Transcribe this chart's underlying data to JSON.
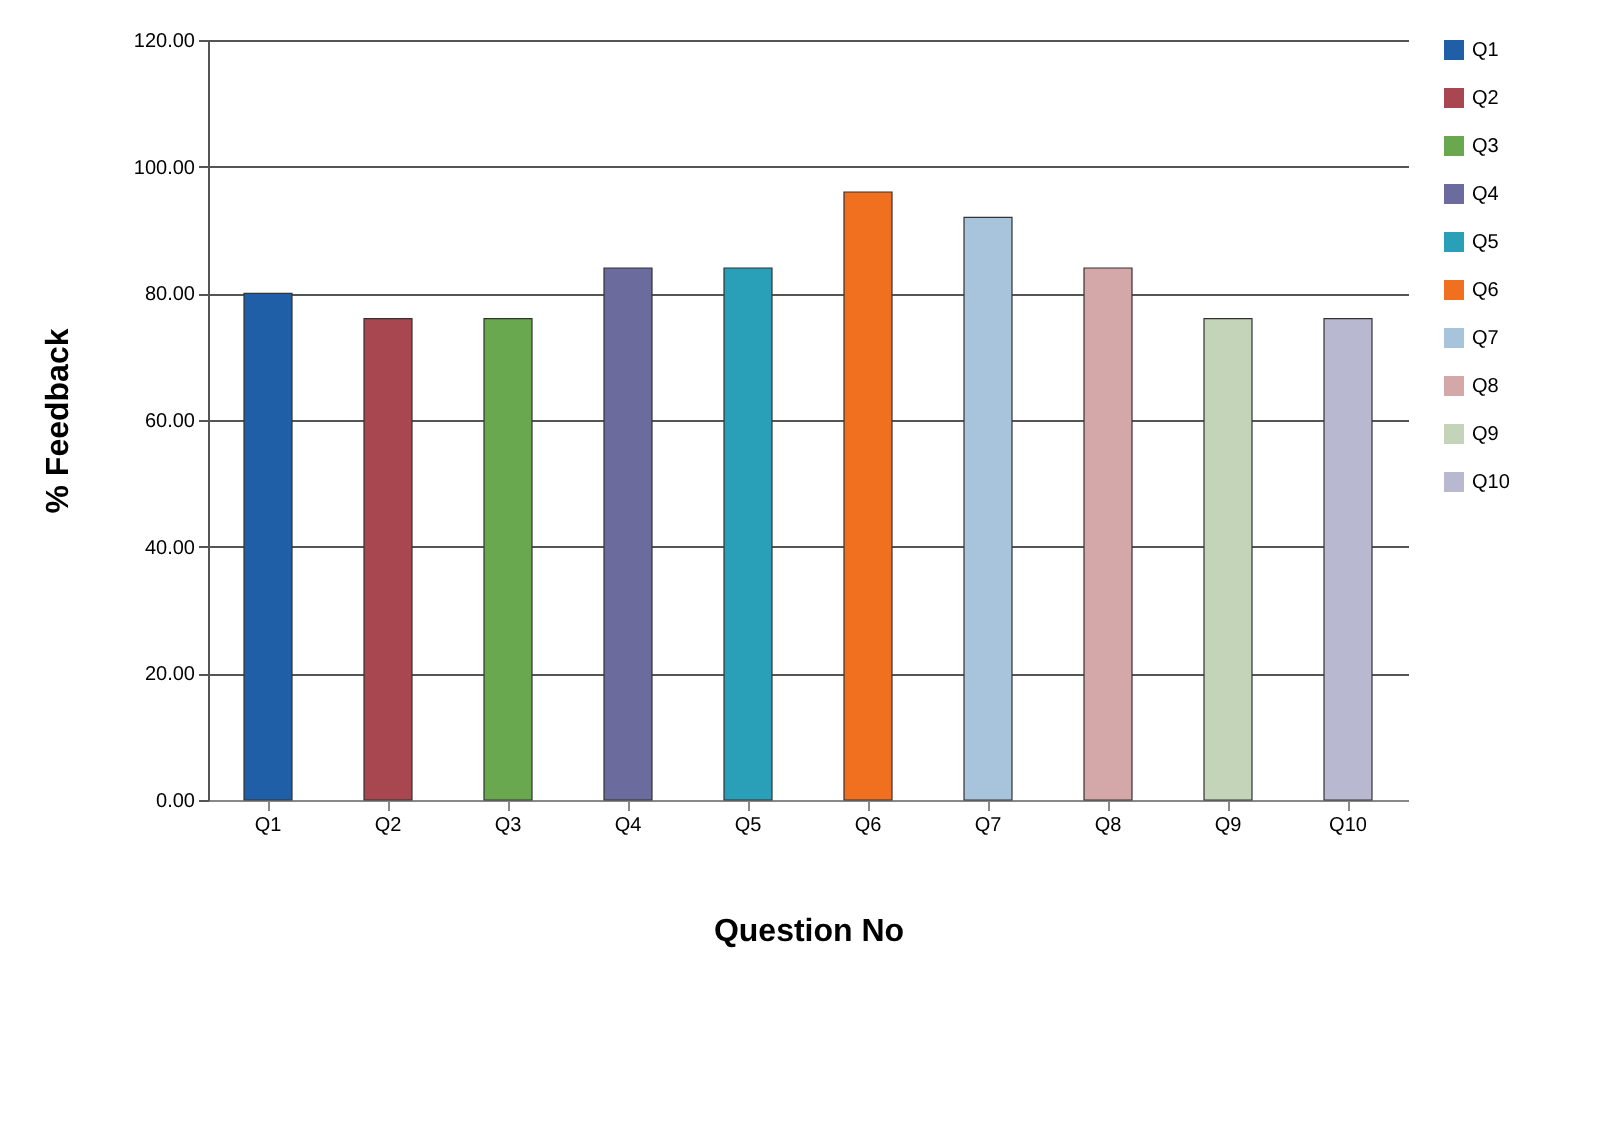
{
  "chart_data": {
    "type": "bar",
    "xlabel": "Question No",
    "ylabel": "% Feedback",
    "categories": [
      "Q1",
      "Q2",
      "Q3",
      "Q4",
      "Q5",
      "Q6",
      "Q7",
      "Q8",
      "Q9",
      "Q10"
    ],
    "series": [
      {
        "name": "Q1",
        "color": "#1f5fa8",
        "values": [
          80,
          null,
          null,
          null,
          null,
          null,
          null,
          null,
          null,
          null
        ]
      },
      {
        "name": "Q2",
        "color": "#a8474f",
        "values": [
          null,
          76,
          null,
          null,
          null,
          null,
          null,
          null,
          null,
          null
        ]
      },
      {
        "name": "Q3",
        "color": "#6aa84f",
        "values": [
          null,
          null,
          76,
          null,
          null,
          null,
          null,
          null,
          null,
          null
        ]
      },
      {
        "name": "Q4",
        "color": "#6b6b9e",
        "values": [
          null,
          null,
          null,
          84,
          null,
          null,
          null,
          null,
          null,
          null
        ]
      },
      {
        "name": "Q5",
        "color": "#2a9fb8",
        "values": [
          null,
          null,
          null,
          null,
          84,
          null,
          null,
          null,
          null,
          null
        ]
      },
      {
        "name": "Q6",
        "color": "#f07020",
        "values": [
          null,
          null,
          null,
          null,
          null,
          96,
          null,
          null,
          null,
          null
        ]
      },
      {
        "name": "Q7",
        "color": "#a8c4dc",
        "values": [
          null,
          null,
          null,
          null,
          null,
          null,
          92,
          null,
          null,
          null
        ]
      },
      {
        "name": "Q8",
        "color": "#d4a8a8",
        "values": [
          null,
          null,
          null,
          null,
          null,
          null,
          null,
          84,
          null,
          null
        ]
      },
      {
        "name": "Q9",
        "color": "#c4d4b8",
        "values": [
          null,
          null,
          null,
          null,
          null,
          null,
          null,
          null,
          76,
          null
        ]
      },
      {
        "name": "Q10",
        "color": "#b8b8d0",
        "values": [
          null,
          null,
          null,
          null,
          null,
          null,
          null,
          null,
          null,
          76
        ]
      }
    ],
    "ylim": [
      0,
      120
    ],
    "yticks": [
      {
        "value": 0,
        "label": "0.00"
      },
      {
        "value": 20,
        "label": "20.00"
      },
      {
        "value": 40,
        "label": "40.00"
      },
      {
        "value": 60,
        "label": "60.00"
      },
      {
        "value": 80,
        "label": "80.00"
      },
      {
        "value": 100,
        "label": "100.00"
      },
      {
        "value": 120,
        "label": "120.00"
      }
    ],
    "grid": "y",
    "legend": "right"
  }
}
